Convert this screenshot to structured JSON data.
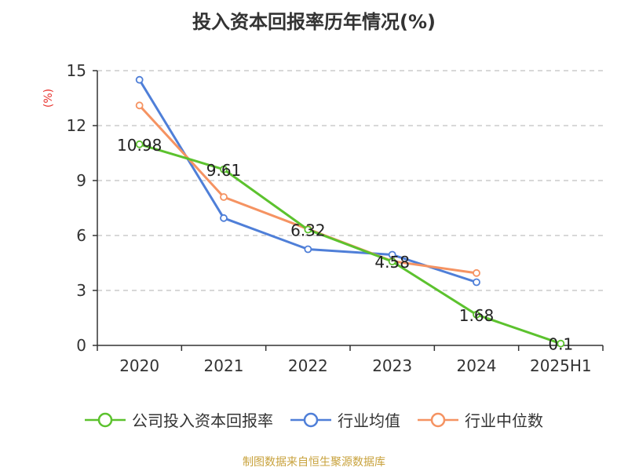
{
  "chart_data": {
    "type": "line",
    "title": "投入资本回报率历年情况(%)",
    "ylabel": "(%)",
    "categories": [
      "2020",
      "2021",
      "2022",
      "2023",
      "2024",
      "2025H1"
    ],
    "ylim": [
      0,
      15
    ],
    "yticks": [
      "0",
      "3",
      "6",
      "9",
      "12",
      "15"
    ],
    "grid": true,
    "legend_position": "bottom",
    "series": [
      {
        "name": "公司投入资本回报率",
        "color": "#5cc22e",
        "values": [
          10.98,
          9.61,
          6.32,
          4.58,
          1.68,
          0.1
        ],
        "labels": [
          "10.98",
          "9.61",
          "6.32",
          "4.58",
          "1.68",
          "0.1"
        ]
      },
      {
        "name": "行业均值",
        "color": "#4f7fd8",
        "values": [
          14.5,
          6.95,
          5.25,
          4.95,
          3.45,
          null
        ]
      },
      {
        "name": "行业中位数",
        "color": "#f59362",
        "values": [
          13.1,
          8.1,
          6.35,
          4.6,
          3.95,
          null
        ]
      }
    ]
  },
  "footer": {
    "source": "制图数据来自恒生聚源数据库"
  },
  "style": {
    "axis_color": "#333333",
    "grid_color": "#cccccc",
    "ylabel_color": "#e8322d"
  }
}
